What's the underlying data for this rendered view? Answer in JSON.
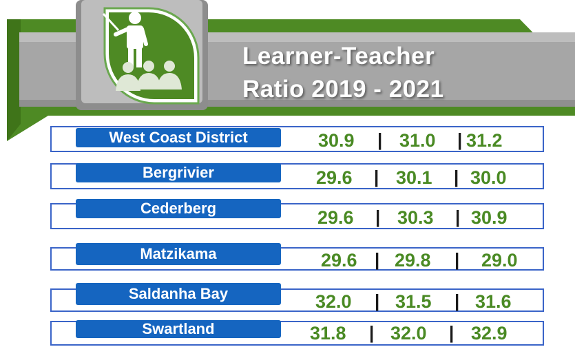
{
  "title": {
    "line1": "Learner-Teacher",
    "line2": "Ratio 2019 - 2021"
  },
  "colors": {
    "banner_green": "#4e8a24",
    "banner_grey": "#a6a6a6",
    "label_blue": "#1565c0",
    "row_border": "#3a64c8",
    "value_green": "#4a8a24"
  },
  "icon": "teacher-presentation-icon",
  "separator": "|",
  "rows": [
    {
      "label": "West Coast District",
      "values": [
        "30.9",
        "31.0",
        "31.2"
      ]
    },
    {
      "label": "Bergrivier",
      "values": [
        "29.6",
        "30.1",
        "30.0"
      ]
    },
    {
      "label": "Cederberg",
      "values": [
        "29.6",
        "30.3",
        "30.9"
      ]
    },
    {
      "label": "Matzikama",
      "values": [
        "29.6",
        "29.8",
        "29.0"
      ]
    },
    {
      "label": "Saldanha Bay",
      "values": [
        "32.0",
        "31.5",
        "31.6"
      ]
    },
    {
      "label": "Swartland",
      "values": [
        "31.8",
        "32.0",
        "32.9"
      ]
    }
  ]
}
